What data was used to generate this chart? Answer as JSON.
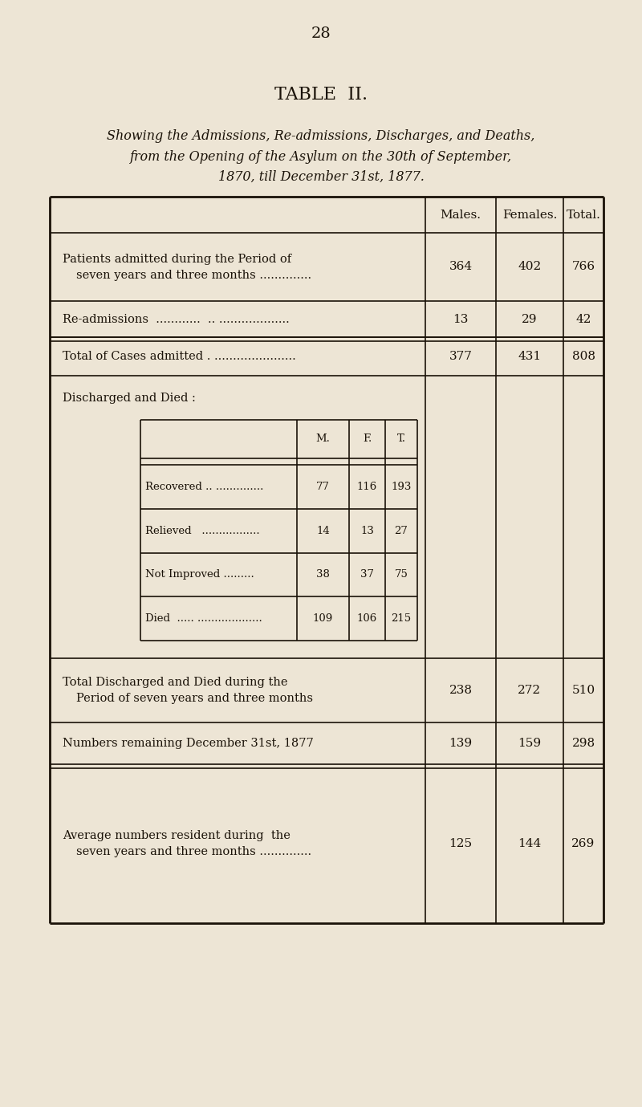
{
  "page_number": "28",
  "title": "TABLE  II.",
  "subtitle_line1": "Showing the Admissions, Re-admissions, Discharges, and Deaths,",
  "subtitle_line2": "from the Opening of the Asylum on the 30th of September,",
  "subtitle_line3": "1870, till December 31st, 1877.",
  "bg_color": "#ede5d5",
  "text_color": "#1a1208",
  "col_headers": [
    "Males.",
    "Females.",
    "Total."
  ],
  "inner_rows": [
    {
      "label": "Recovered .. ..............",
      "m": "77",
      "f": "116",
      "t": "193"
    },
    {
      "label": "Relieved   .................",
      "m": "14",
      "f": "13",
      "t": "27"
    },
    {
      "label": "Not Improved .........",
      "m": "38",
      "f": "37",
      "t": "75"
    },
    {
      "label": "Died  ..... ...................",
      "m": "109",
      "f": "106",
      "t": "215"
    }
  ]
}
